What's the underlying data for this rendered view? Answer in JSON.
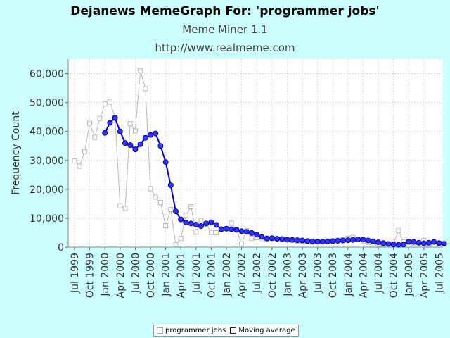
{
  "header": {
    "title": "Dejanews MemeGraph For: 'programmer jobs'",
    "subtitle": "Meme Miner 1.1",
    "url": "http://www.realmeme.com"
  },
  "legend": {
    "series1": "programmer jobs",
    "series2": "Moving average"
  },
  "colors": {
    "background": "#ccffff",
    "raw": "#b8b8b8",
    "average": "#0000dd"
  },
  "chart_data": {
    "type": "line",
    "title": "Dejanews MemeGraph For: 'programmer jobs'",
    "ylabel": "Frequency Count",
    "xlabel": "",
    "ylim": [
      0,
      65000
    ],
    "yticks": [
      0,
      10000,
      20000,
      30000,
      40000,
      50000,
      60000
    ],
    "ytick_labels": [
      "0",
      "10,000",
      "20,000",
      "30,000",
      "40,000",
      "50,000",
      "60,000"
    ],
    "xtick_labels": [
      "Jul 1999",
      "Oct 1999",
      "Jan 2000",
      "Apr 2000",
      "Jul 2000",
      "Oct 2000",
      "Jan 2001",
      "Apr 2001",
      "Jul 2001",
      "Oct 2001",
      "Jan 2002",
      "Apr 2002",
      "Jul 2002",
      "Oct 2002",
      "Jan 2003",
      "Apr 2003",
      "Jul 2003",
      "Oct 2003",
      "Jan 2004",
      "Apr 2004",
      "Jul 2004",
      "Oct 2004",
      "Jan 2005",
      "Apr 2005",
      "Jul 2005"
    ],
    "grid": true,
    "legend_position": "bottom",
    "x_start": "Jul 1999",
    "series": [
      {
        "name": "programmer jobs",
        "values": [
          29800,
          28000,
          33000,
          42800,
          38000,
          44500,
          49500,
          50200,
          44800,
          14300,
          13400,
          42700,
          40200,
          61000,
          54800,
          20200,
          17300,
          15400,
          7400,
          13000,
          900,
          3000,
          11000,
          14000,
          5200,
          9200,
          8000,
          5100,
          5000,
          6100,
          6300,
          8300,
          6000,
          1100,
          5700,
          3000,
          3300,
          3200,
          2600,
          3000,
          2900,
          2500,
          2600,
          2400,
          2100,
          2200,
          1800,
          1700,
          2000,
          1900,
          2000,
          2000,
          2400,
          2700,
          3100,
          3400,
          2600,
          2000,
          1600,
          1200,
          900,
          1000,
          800,
          1200,
          5800,
          1800,
          1600,
          1300,
          1500,
          2300,
          1000,
          1100
        ]
      },
      {
        "name": "Moving average",
        "offset": 6,
        "values": [
          39500,
          43000,
          44700,
          40000,
          36000,
          35300,
          33800,
          35600,
          37800,
          38800,
          39300,
          35000,
          29400,
          21400,
          12400,
          9600,
          8500,
          8200,
          7800,
          7300,
          8200,
          8600,
          7700,
          6200,
          6400,
          6200,
          6000,
          5500,
          5300,
          4900,
          4300,
          3600,
          3000,
          3100,
          2900,
          2800,
          2600,
          2500,
          2400,
          2300,
          2100,
          2000,
          1900,
          1900,
          2000,
          2100,
          2200,
          2300,
          2400,
          2500,
          2700,
          2600,
          2300,
          2000,
          1700,
          1400,
          1100,
          900,
          800,
          900,
          1900,
          1800,
          1500,
          1300,
          1500,
          1800,
          1400,
          1200
        ]
      }
    ]
  }
}
